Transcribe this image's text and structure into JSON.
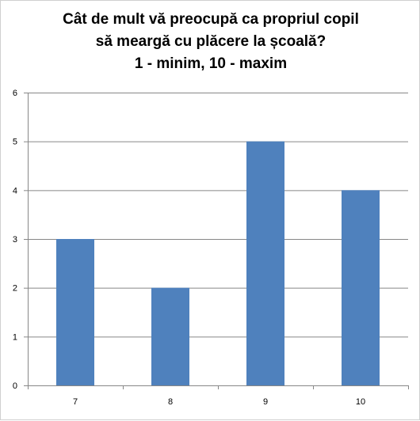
{
  "chart_data": {
    "type": "bar",
    "title_lines": [
      "Cât de mult vă preocupă ca propriul copil",
      "să meargă cu plăcere la școală?",
      "1 - minim, 10 - maxim"
    ],
    "categories": [
      "7",
      "8",
      "9",
      "10"
    ],
    "values": [
      3,
      2,
      5,
      4
    ],
    "ylim": [
      0,
      6
    ],
    "y_ticks": [
      "0",
      "1",
      "2",
      "3",
      "4",
      "5",
      "6"
    ],
    "grid": true,
    "legend": "none",
    "bar_color": "#4F81BD",
    "grid_color": "#878787",
    "xlabel": "",
    "ylabel": ""
  }
}
